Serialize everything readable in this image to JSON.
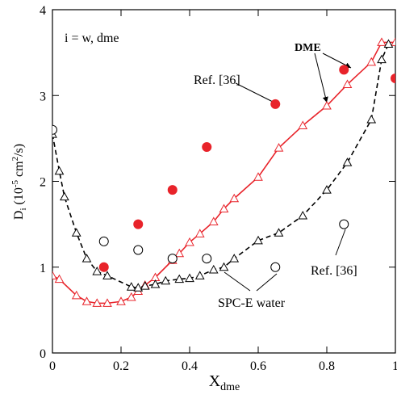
{
  "chart_data": {
    "type": "line",
    "ylabel": {
      "symbol": "D",
      "sub": "i",
      "unit1": "(10",
      "exp1": "-5",
      "unit2": " cm",
      "exp2": "2",
      "unit3": "/s)"
    },
    "xlabel": {
      "symbol": "X",
      "sub": "dme"
    },
    "xlim": [
      0,
      1
    ],
    "xticks": [
      0,
      0.2,
      0.4,
      0.6,
      0.8,
      1
    ],
    "ylim": [
      0,
      4
    ],
    "yticks": [
      0,
      1,
      2,
      3,
      4
    ],
    "series": [
      {
        "color": "#e8232a",
        "line": "solid",
        "marker": "triangle",
        "filled": false,
        "x": [
          0,
          0.02,
          0.07,
          0.1,
          0.13,
          0.16,
          0.2,
          0.23,
          0.25,
          0.27,
          0.3,
          0.35,
          0.37,
          0.4,
          0.43,
          0.47,
          0.5,
          0.53,
          0.6,
          0.66,
          0.73,
          0.8,
          0.86,
          0.93,
          0.96,
          1.0
        ],
        "values": [
          0.9,
          0.86,
          0.67,
          0.6,
          0.58,
          0.58,
          0.6,
          0.65,
          0.72,
          0.79,
          0.88,
          1.08,
          1.16,
          1.29,
          1.39,
          1.53,
          1.68,
          1.8,
          2.05,
          2.39,
          2.65,
          2.88,
          3.13,
          3.39,
          3.62,
          3.62
        ]
      },
      {
        "color": "#000000",
        "line": "dashed",
        "marker": "triangle",
        "filled": false,
        "x": [
          0,
          0.02,
          0.035,
          0.07,
          0.1,
          0.13,
          0.16,
          0.23,
          0.25,
          0.27,
          0.3,
          0.33,
          0.37,
          0.4,
          0.43,
          0.47,
          0.5,
          0.53,
          0.6,
          0.66,
          0.73,
          0.8,
          0.86,
          0.93,
          0.96,
          0.98
        ],
        "values": [
          2.55,
          2.12,
          1.82,
          1.4,
          1.1,
          0.95,
          0.9,
          0.77,
          0.76,
          0.78,
          0.8,
          0.84,
          0.86,
          0.87,
          0.9,
          0.97,
          1.0,
          1.1,
          1.31,
          1.4,
          1.6,
          1.9,
          2.22,
          2.72,
          3.42,
          3.6
        ]
      },
      {
        "color": "#e8232a",
        "line": "none",
        "marker": "circle",
        "filled": true,
        "x": [
          0.15,
          0.25,
          0.35,
          0.45,
          0.65,
          0.85,
          1.0
        ],
        "values": [
          1.0,
          1.5,
          1.9,
          2.4,
          2.9,
          3.3,
          3.2
        ]
      },
      {
        "color": "#000000",
        "line": "none",
        "marker": "circle",
        "filled": false,
        "x": [
          0,
          0.15,
          0.25,
          0.35,
          0.45,
          0.65,
          0.85
        ],
        "values": [
          2.6,
          1.3,
          1.2,
          1.1,
          1.1,
          1.0,
          1.5
        ]
      }
    ],
    "annotations": [
      "i = w, dme",
      "DME",
      "Ref. [36]",
      "Ref. [36]",
      "SPC-E water"
    ]
  }
}
